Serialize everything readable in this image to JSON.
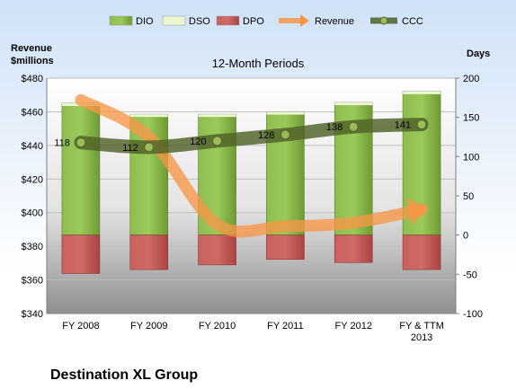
{
  "chart_data": {
    "type": "bar",
    "title": "12-Month Periods",
    "company": "Destination XL Group",
    "left_axis_label_line1": "Revenue",
    "left_axis_label_line2": "$millions",
    "right_axis_label": "Days",
    "categories": [
      "FY 2008",
      "FY 2009",
      "FY 2010",
      "FY 2011",
      "FY 2012",
      "FY & TTM 2013"
    ],
    "category_lines": [
      [
        "FY 2008"
      ],
      [
        "FY 2009"
      ],
      [
        "FY 2010"
      ],
      [
        "FY 2011"
      ],
      [
        "FY 2012"
      ],
      [
        "FY & TTM",
        "2013"
      ]
    ],
    "left_ylim": [
      340,
      480
    ],
    "left_ticks": [
      "$340",
      "$360",
      "$380",
      "$400",
      "$420",
      "$440",
      "$460",
      "$480"
    ],
    "right_ylim": [
      -100,
      200
    ],
    "right_ticks": [
      "-100",
      "-50",
      "0",
      "50",
      "100",
      "150",
      "200"
    ],
    "series": [
      {
        "name": "DIO",
        "kind": "bar",
        "axis": "right",
        "color": "#77a33a",
        "values": [
          168,
          154,
          154,
          157,
          169,
          183
        ]
      },
      {
        "name": "DSO",
        "kind": "bar",
        "axis": "right",
        "color": "#eaf5d0",
        "values": [
          0,
          0,
          0,
          0,
          0,
          0
        ]
      },
      {
        "name": "DPO",
        "kind": "bar",
        "axis": "right",
        "color": "#c0504d",
        "values": [
          -49,
          -44,
          -38,
          -31,
          -35,
          -44
        ]
      },
      {
        "name": "Revenue",
        "kind": "line",
        "axis": "left",
        "color": "#f79646",
        "values": [
          467,
          445,
          393,
          392,
          394,
          402
        ]
      },
      {
        "name": "CCC",
        "kind": "line",
        "axis": "right",
        "color": "#4f6228",
        "values": [
          118,
          112,
          120,
          128,
          138,
          141
        ]
      }
    ],
    "ccc_labels": [
      "118",
      "112",
      "120",
      "128",
      "138",
      "141"
    ],
    "legend": [
      "DIO",
      "DSO",
      "DPO",
      "Revenue",
      "CCC"
    ],
    "legend_position": "top",
    "grid": true
  }
}
